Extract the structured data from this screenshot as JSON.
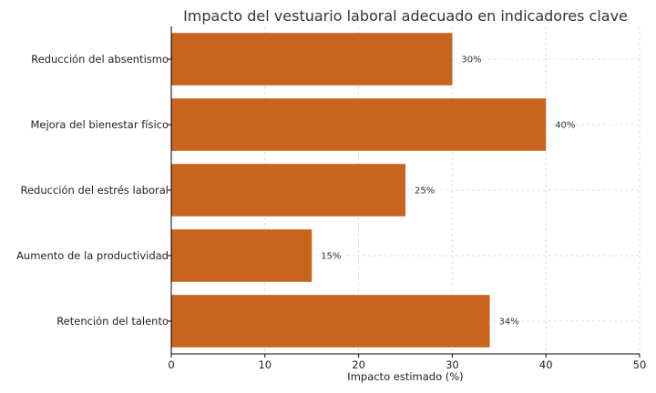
{
  "chart_data": {
    "type": "bar",
    "orientation": "horizontal",
    "title": "Impacto del vestuario laboral adecuado en indicadores clave",
    "xlabel": "Impacto estimado (%)",
    "ylabel": "",
    "xlim": [
      0,
      50
    ],
    "xticks": [
      0,
      10,
      20,
      30,
      40,
      50
    ],
    "grid": true,
    "bar_color": "#c8641e",
    "categories": [
      "Reducción del absentismo",
      "Mejora del bienestar físico",
      "Reducción del estrés laboral",
      "Aumento de la productividad",
      "Retención del talento"
    ],
    "values": [
      30,
      40,
      25,
      15,
      34
    ],
    "data_labels": [
      "30%",
      "40%",
      "25%",
      "15%",
      "34%"
    ]
  }
}
